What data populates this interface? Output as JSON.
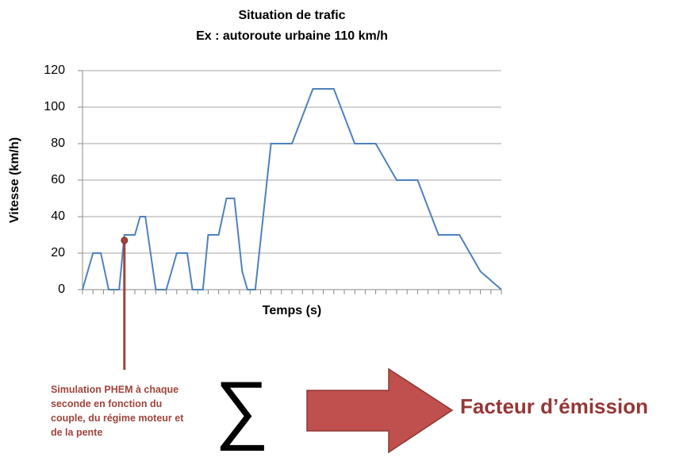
{
  "chart_data": {
    "type": "line",
    "title": "Situation de trafic",
    "subtitle": "Ex : autoroute urbaine 110 km/h",
    "y_label": "Vitesse (km/h)",
    "x_label": "Temps (s)",
    "xlim": [
      0,
      40
    ],
    "ylim": [
      0,
      120
    ],
    "yticks": [
      0,
      20,
      40,
      60,
      80,
      100,
      120
    ],
    "grid": true,
    "series": [
      {
        "color": "#4f81bd",
        "x": [
          0,
          1,
          1.75,
          2.5,
          3.5,
          4,
          5,
          5.5,
          6,
          7,
          8,
          9,
          10,
          10.5,
          11.5,
          12,
          13,
          13.75,
          14.5,
          15.25,
          15.75,
          16.5,
          18,
          20,
          22,
          24,
          26,
          28,
          30,
          32,
          34,
          36,
          38,
          40
        ],
        "values": [
          0,
          20,
          20,
          0,
          0,
          30,
          30,
          40,
          40,
          0,
          0,
          20,
          20,
          0,
          0,
          30,
          30,
          50,
          50,
          10,
          0,
          0,
          80,
          80,
          110,
          110,
          80,
          80,
          60,
          60,
          30,
          30,
          10,
          0
        ]
      }
    ],
    "annotation": {
      "text": "Simulation PHEM à chaque seconde en fonction du couple, du régime moteur et de la pente",
      "x": 4,
      "y": 27,
      "color": "#a0443a"
    },
    "sum_symbol": "∑",
    "result": "Facteur d’émission",
    "arrow_color": "#c0504d"
  }
}
